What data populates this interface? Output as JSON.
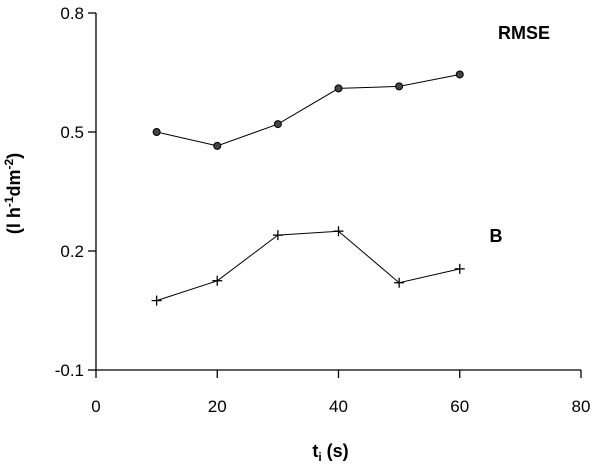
{
  "chart_data": {
    "type": "line",
    "title": "",
    "xlabel_main": "t",
    "xlabel_sub": "i",
    "xlabel_rest": " (s)",
    "ylabel_main": "(l h",
    "ylabel_sup1": "-1",
    "ylabel_mid": "dm",
    "ylabel_sup2": "-2",
    "ylabel_end": ")",
    "xlim": [
      0,
      80
    ],
    "ylim": [
      -0.1,
      0.8
    ],
    "xticks": [
      0,
      20,
      40,
      60,
      80
    ],
    "xtick_labels": [
      "0",
      "20",
      "40",
      "60",
      "80"
    ],
    "yticks": [
      -0.1,
      0.2,
      0.5,
      0.8
    ],
    "ytick_labels": [
      "-0.1",
      "0.2",
      "0.5",
      "0.8"
    ],
    "grid": false,
    "series": [
      {
        "name": "RMSE",
        "marker": "circle",
        "x": [
          10,
          20,
          30,
          40,
          50,
          60
        ],
        "values": [
          0.5,
          0.465,
          0.52,
          0.61,
          0.615,
          0.645
        ]
      },
      {
        "name": "B",
        "marker": "plus",
        "x": [
          10,
          20,
          30,
          40,
          50,
          60
        ],
        "values": [
          0.075,
          0.125,
          0.24,
          0.25,
          0.12,
          0.155
        ]
      }
    ]
  }
}
